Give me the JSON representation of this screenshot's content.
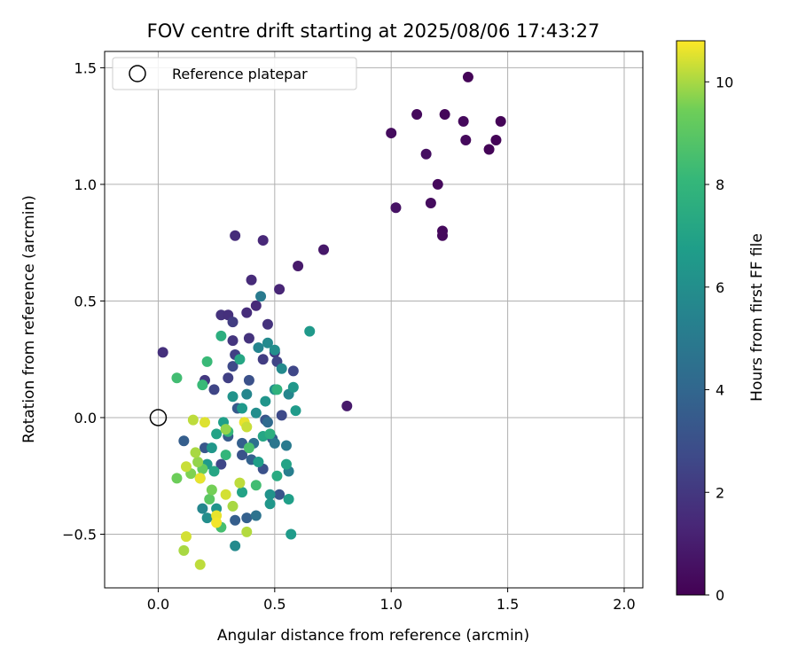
{
  "chart_data": {
    "type": "scatter",
    "title": "FOV centre drift starting at 2025/08/06 17:43:27",
    "xlabel": "Angular distance from reference (arcmin)",
    "ylabel": "Rotation from reference (arcmin)",
    "xlim": [
      -0.23,
      2.08
    ],
    "ylim": [
      -0.73,
      1.57
    ],
    "xticks": [
      0.0,
      0.5,
      1.0,
      1.5,
      2.0
    ],
    "xtick_labels": [
      "0.0",
      "0.5",
      "1.0",
      "1.5",
      "2.0"
    ],
    "yticks": [
      -0.5,
      0.0,
      0.5,
      1.0,
      1.5
    ],
    "ytick_labels": [
      "−0.5",
      "0.0",
      "0.5",
      "1.0",
      "1.5"
    ],
    "grid": true,
    "legend": {
      "placement": "top-left",
      "entries": [
        "Reference platepar"
      ]
    },
    "reference_point": {
      "x": 0.0,
      "y": 0.0
    },
    "colorbar": {
      "label": "Hours from first FF file",
      "min": 0,
      "max": 10.8,
      "ticks": [
        0,
        2,
        4,
        6,
        8,
        10
      ],
      "tick_labels": [
        "0",
        "2",
        "4",
        "6",
        "8",
        "10"
      ],
      "colormap": "viridis"
    },
    "points": [
      {
        "x": 1.33,
        "y": 1.46,
        "c": 0.1
      },
      {
        "x": 1.11,
        "y": 1.3,
        "c": 0.3
      },
      {
        "x": 1.23,
        "y": 1.3,
        "c": 0.2
      },
      {
        "x": 1.47,
        "y": 1.27,
        "c": 0.1
      },
      {
        "x": 1.31,
        "y": 1.27,
        "c": 0.3
      },
      {
        "x": 1.0,
        "y": 1.22,
        "c": 0.4
      },
      {
        "x": 1.32,
        "y": 1.19,
        "c": 0.3
      },
      {
        "x": 1.45,
        "y": 1.19,
        "c": 0.1
      },
      {
        "x": 1.15,
        "y": 1.13,
        "c": 0.5
      },
      {
        "x": 1.42,
        "y": 1.15,
        "c": 0.1
      },
      {
        "x": 1.2,
        "y": 1.0,
        "c": 0.3
      },
      {
        "x": 1.17,
        "y": 0.92,
        "c": 0.4
      },
      {
        "x": 1.02,
        "y": 0.9,
        "c": 0.6
      },
      {
        "x": 1.22,
        "y": 0.8,
        "c": 0.3
      },
      {
        "x": 1.22,
        "y": 0.78,
        "c": 0.3
      },
      {
        "x": 0.71,
        "y": 0.72,
        "c": 0.8
      },
      {
        "x": 0.6,
        "y": 0.65,
        "c": 0.9
      },
      {
        "x": 0.81,
        "y": 0.05,
        "c": 0.9
      },
      {
        "x": 0.45,
        "y": 0.76,
        "c": 1.4
      },
      {
        "x": 0.33,
        "y": 0.78,
        "c": 1.6
      },
      {
        "x": 0.52,
        "y": 0.55,
        "c": 1.3
      },
      {
        "x": 0.4,
        "y": 0.59,
        "c": 1.5
      },
      {
        "x": 0.42,
        "y": 0.48,
        "c": 1.5
      },
      {
        "x": 0.27,
        "y": 0.44,
        "c": 1.8
      },
      {
        "x": 0.3,
        "y": 0.44,
        "c": 1.7
      },
      {
        "x": 0.38,
        "y": 0.45,
        "c": 1.6
      },
      {
        "x": 0.47,
        "y": 0.4,
        "c": 1.8
      },
      {
        "x": 0.32,
        "y": 0.41,
        "c": 2.2
      },
      {
        "x": 0.02,
        "y": 0.28,
        "c": 1.7
      },
      {
        "x": 0.32,
        "y": 0.33,
        "c": 1.9
      },
      {
        "x": 0.39,
        "y": 0.34,
        "c": 1.8
      },
      {
        "x": 0.5,
        "y": 0.28,
        "c": 2.0
      },
      {
        "x": 0.45,
        "y": 0.25,
        "c": 2.2
      },
      {
        "x": 0.33,
        "y": 0.27,
        "c": 2.3
      },
      {
        "x": 0.51,
        "y": 0.24,
        "c": 2.5
      },
      {
        "x": 0.32,
        "y": 0.22,
        "c": 2.7
      },
      {
        "x": 0.58,
        "y": 0.2,
        "c": 2.6
      },
      {
        "x": 0.3,
        "y": 0.17,
        "c": 2.3
      },
      {
        "x": 0.2,
        "y": 0.16,
        "c": 2.0
      },
      {
        "x": 0.39,
        "y": 0.16,
        "c": 3.0
      },
      {
        "x": 0.24,
        "y": 0.12,
        "c": 2.5
      },
      {
        "x": 0.53,
        "y": 0.01,
        "c": 2.7
      },
      {
        "x": 0.46,
        "y": -0.01,
        "c": 3.2
      },
      {
        "x": 0.34,
        "y": 0.04,
        "c": 3.4
      },
      {
        "x": 0.11,
        "y": -0.1,
        "c": 3.6
      },
      {
        "x": 0.2,
        "y": -0.13,
        "c": 3.3
      },
      {
        "x": 0.3,
        "y": -0.08,
        "c": 3.5
      },
      {
        "x": 0.36,
        "y": -0.11,
        "c": 3.7
      },
      {
        "x": 0.4,
        "y": -0.18,
        "c": 3.8
      },
      {
        "x": 0.49,
        "y": -0.09,
        "c": 3.4
      },
      {
        "x": 0.45,
        "y": -0.22,
        "c": 3.0
      },
      {
        "x": 0.27,
        "y": -0.2,
        "c": 2.6
      },
      {
        "x": 0.36,
        "y": -0.16,
        "c": 3.1
      },
      {
        "x": 0.52,
        "y": -0.33,
        "c": 3.2
      },
      {
        "x": 0.33,
        "y": -0.44,
        "c": 3.6
      },
      {
        "x": 0.38,
        "y": -0.43,
        "c": 3.7
      },
      {
        "x": 0.42,
        "y": -0.42,
        "c": 4.6
      },
      {
        "x": 0.41,
        "y": -0.11,
        "c": 4.5
      },
      {
        "x": 0.47,
        "y": -0.02,
        "c": 4.2
      },
      {
        "x": 0.5,
        "y": -0.11,
        "c": 4.8
      },
      {
        "x": 0.55,
        "y": -0.12,
        "c": 5.0
      },
      {
        "x": 0.56,
        "y": -0.23,
        "c": 5.2
      },
      {
        "x": 0.44,
        "y": 0.52,
        "c": 5.0
      },
      {
        "x": 0.43,
        "y": 0.3,
        "c": 5.5
      },
      {
        "x": 0.47,
        "y": 0.32,
        "c": 5.8
      },
      {
        "x": 0.5,
        "y": 0.29,
        "c": 6.0
      },
      {
        "x": 0.56,
        "y": 0.1,
        "c": 5.6
      },
      {
        "x": 0.58,
        "y": 0.13,
        "c": 6.4
      },
      {
        "x": 0.65,
        "y": 0.37,
        "c": 6.5
      },
      {
        "x": 0.59,
        "y": 0.03,
        "c": 6.6
      },
      {
        "x": 0.5,
        "y": 0.12,
        "c": 6.0
      },
      {
        "x": 0.53,
        "y": 0.21,
        "c": 5.8
      },
      {
        "x": 0.46,
        "y": 0.07,
        "c": 6.3
      },
      {
        "x": 0.42,
        "y": 0.02,
        "c": 6.0
      },
      {
        "x": 0.38,
        "y": 0.1,
        "c": 5.6
      },
      {
        "x": 0.32,
        "y": 0.09,
        "c": 6.2
      },
      {
        "x": 0.36,
        "y": 0.04,
        "c": 6.5
      },
      {
        "x": 0.28,
        "y": -0.02,
        "c": 6.8
      },
      {
        "x": 0.25,
        "y": -0.07,
        "c": 7.0
      },
      {
        "x": 0.23,
        "y": -0.13,
        "c": 6.4
      },
      {
        "x": 0.21,
        "y": -0.2,
        "c": 6.6
      },
      {
        "x": 0.24,
        "y": -0.23,
        "c": 7.2
      },
      {
        "x": 0.19,
        "y": -0.39,
        "c": 5.6
      },
      {
        "x": 0.21,
        "y": -0.43,
        "c": 6.0
      },
      {
        "x": 0.25,
        "y": -0.39,
        "c": 6.3
      },
      {
        "x": 0.33,
        "y": -0.55,
        "c": 5.8
      },
      {
        "x": 0.57,
        "y": -0.5,
        "c": 6.6
      },
      {
        "x": 0.48,
        "y": -0.37,
        "c": 6.4
      },
      {
        "x": 0.56,
        "y": -0.35,
        "c": 6.8
      },
      {
        "x": 0.48,
        "y": -0.33,
        "c": 6.2
      },
      {
        "x": 0.43,
        "y": -0.19,
        "c": 6.8
      },
      {
        "x": 0.36,
        "y": -0.32,
        "c": 7.0
      },
      {
        "x": 0.51,
        "y": -0.25,
        "c": 7.4
      },
      {
        "x": 0.55,
        "y": -0.2,
        "c": 7.0
      },
      {
        "x": 0.45,
        "y": -0.08,
        "c": 7.2
      },
      {
        "x": 0.48,
        "y": -0.07,
        "c": 7.6
      },
      {
        "x": 0.51,
        "y": 0.12,
        "c": 7.8
      },
      {
        "x": 0.27,
        "y": 0.35,
        "c": 7.6
      },
      {
        "x": 0.35,
        "y": 0.25,
        "c": 7.2
      },
      {
        "x": 0.19,
        "y": 0.14,
        "c": 8.2
      },
      {
        "x": 0.08,
        "y": 0.17,
        "c": 8.4
      },
      {
        "x": 0.21,
        "y": 0.24,
        "c": 8.2
      },
      {
        "x": 0.3,
        "y": -0.06,
        "c": 8.0
      },
      {
        "x": 0.29,
        "y": -0.16,
        "c": 8.0
      },
      {
        "x": 0.39,
        "y": -0.13,
        "c": 8.6
      },
      {
        "x": 0.42,
        "y": -0.29,
        "c": 8.4
      },
      {
        "x": 0.27,
        "y": -0.47,
        "c": 8.5
      },
      {
        "x": 0.18,
        "y": -0.26,
        "c": 8.8
      },
      {
        "x": 0.22,
        "y": -0.35,
        "c": 9.0
      },
      {
        "x": 0.19,
        "y": -0.22,
        "c": 9.2
      },
      {
        "x": 0.23,
        "y": -0.31,
        "c": 9.5
      },
      {
        "x": 0.14,
        "y": -0.24,
        "c": 9.6
      },
      {
        "x": 0.08,
        "y": -0.26,
        "c": 9.4
      },
      {
        "x": 0.17,
        "y": -0.19,
        "c": 9.8
      },
      {
        "x": 0.16,
        "y": -0.15,
        "c": 10.0
      },
      {
        "x": 0.15,
        "y": -0.01,
        "c": 10.2
      },
      {
        "x": 0.2,
        "y": -0.02,
        "c": 10.5
      },
      {
        "x": 0.12,
        "y": -0.21,
        "c": 10.3
      },
      {
        "x": 0.18,
        "y": -0.26,
        "c": 10.6
      },
      {
        "x": 0.29,
        "y": -0.33,
        "c": 10.4
      },
      {
        "x": 0.35,
        "y": -0.28,
        "c": 10.2
      },
      {
        "x": 0.32,
        "y": -0.38,
        "c": 10.0
      },
      {
        "x": 0.25,
        "y": -0.42,
        "c": 10.6
      },
      {
        "x": 0.25,
        "y": -0.45,
        "c": 10.7
      },
      {
        "x": 0.38,
        "y": -0.49,
        "c": 10.1
      },
      {
        "x": 0.12,
        "y": -0.51,
        "c": 10.4
      },
      {
        "x": 0.11,
        "y": -0.57,
        "c": 10.0
      },
      {
        "x": 0.18,
        "y": -0.63,
        "c": 10.2
      },
      {
        "x": 0.37,
        "y": -0.02,
        "c": 10.6
      },
      {
        "x": 0.38,
        "y": -0.04,
        "c": 10.3
      },
      {
        "x": 0.29,
        "y": -0.05,
        "c": 9.8
      }
    ]
  }
}
